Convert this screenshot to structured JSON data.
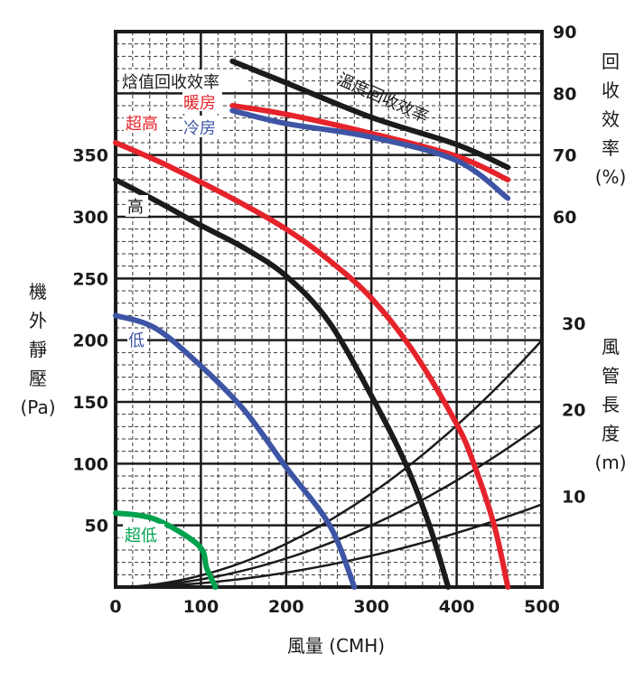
{
  "chart_data": {
    "type": "line",
    "xlabel": "風量 (CMH)",
    "ylabel_chars": [
      "機",
      "外",
      "靜",
      "壓"
    ],
    "ylabel_unit": "(Pa)",
    "y2_label_chars": [
      "回",
      "收",
      "效",
      "率"
    ],
    "y2_label_unit": "(%)",
    "y3_label_chars": [
      "風",
      "管",
      "長",
      "度"
    ],
    "y3_label_unit": "(m)",
    "xlim": [
      0,
      500
    ],
    "ylim": [
      0,
      450
    ],
    "y2lim": [
      50,
      90
    ],
    "x_ticks": [
      0,
      100,
      200,
      300,
      400,
      500
    ],
    "y_ticks": [
      50,
      100,
      150,
      200,
      250,
      300,
      350
    ],
    "y2_ticks": [
      60,
      70,
      80,
      90
    ],
    "y3_ticks": [
      10,
      20,
      30
    ],
    "grid": true,
    "colors": {
      "red": "#e5232b",
      "blue": "#3e55a5",
      "green": "#00a24e",
      "black": "#1b1b1b"
    },
    "pressure_series": [
      {
        "name": "超高",
        "color": "#e5232b",
        "x": [
          0,
          50,
          100,
          150,
          200,
          250,
          300,
          350,
          400,
          420,
          444,
          460
        ],
        "y": [
          360,
          345,
          328,
          310,
          290,
          265,
          234,
          190,
          132,
          100,
          50,
          0
        ]
      },
      {
        "name": "高",
        "color": "#1b1b1b",
        "x": [
          0,
          50,
          100,
          150,
          200,
          250,
          300,
          340,
          368,
          390
        ],
        "y": [
          330,
          312,
          293,
          275,
          252,
          215,
          155,
          100,
          50,
          0
        ]
      },
      {
        "name": "低",
        "color": "#3e55a5",
        "x": [
          0,
          46,
          97,
          150,
          200,
          251,
          280
        ],
        "y": [
          220,
          210,
          181,
          144,
          97,
          50,
          0
        ]
      },
      {
        "name": "超低",
        "color": "#00a24e",
        "x": [
          0,
          46,
          97,
          107,
          117
        ],
        "y": [
          60,
          55,
          34,
          15,
          0
        ]
      }
    ],
    "efficiency_series": [
      {
        "name": "溫度回收效率",
        "color": "#1b1b1b",
        "x": [
          137,
          200,
          300,
          400,
          460
        ],
        "y": [
          85.2,
          81.7,
          76.1,
          71.7,
          68
        ]
      },
      {
        "name": "暖房",
        "color": "#e5232b",
        "x": [
          137,
          200,
          300,
          400,
          460
        ],
        "y": [
          78,
          76.6,
          73.5,
          69.8,
          66
        ]
      },
      {
        "name": "冷房",
        "color": "#3e55a5",
        "x": [
          137,
          200,
          300,
          400,
          460
        ],
        "y": [
          77.2,
          75.1,
          72.9,
          69.1,
          63
        ]
      }
    ],
    "duct_series": [
      {
        "name": "30m",
        "length_m": 30,
        "pressure_at_500": 200
      },
      {
        "name": "20m",
        "length_m": 20,
        "pressure_at_500": 132
      },
      {
        "name": "10m",
        "length_m": 10,
        "pressure_at_500": 67
      }
    ],
    "annotations": {
      "enthalpy": "焓值回收效率",
      "temperature": "溫度回收效率",
      "heating": "暖房",
      "cooling": "冷房",
      "super_high": "超高",
      "high": "高",
      "low": "低",
      "super_low": "超低"
    }
  }
}
